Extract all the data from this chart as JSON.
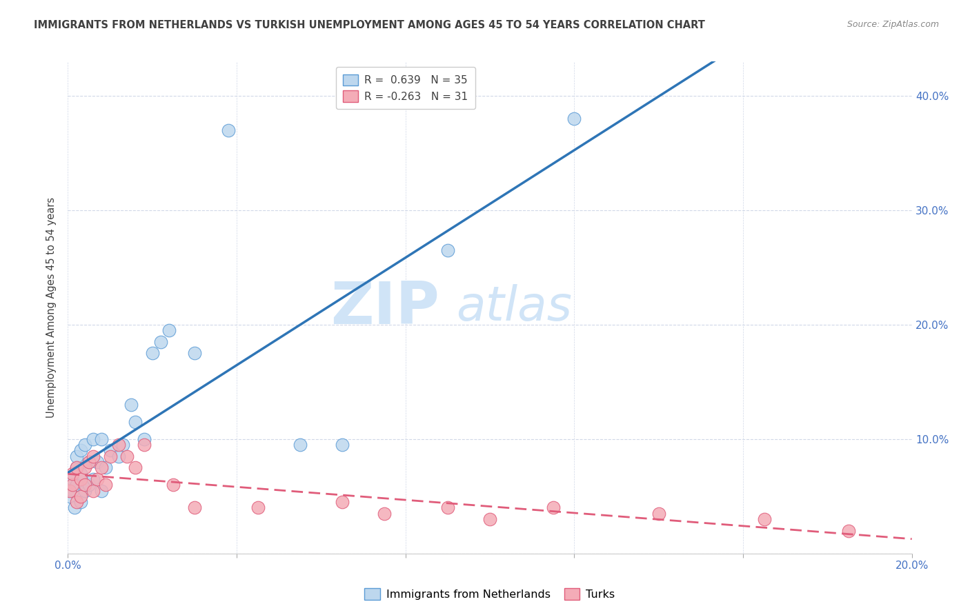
{
  "title": "IMMIGRANTS FROM NETHERLANDS VS TURKISH UNEMPLOYMENT AMONG AGES 45 TO 54 YEARS CORRELATION CHART",
  "source": "Source: ZipAtlas.com",
  "ylabel": "Unemployment Among Ages 45 to 54 years",
  "xlim": [
    0.0,
    0.2
  ],
  "ylim": [
    0.0,
    0.43
  ],
  "blue_R": "0.639",
  "blue_N": "35",
  "pink_R": "-0.263",
  "pink_N": "31",
  "blue_color": "#bdd7ee",
  "blue_edge_color": "#5b9bd5",
  "blue_line_color": "#2e75b6",
  "pink_color": "#f4acb7",
  "pink_edge_color": "#e05c7a",
  "pink_line_color": "#e05c7a",
  "blue_scatter_x": [
    0.0005,
    0.001,
    0.001,
    0.0015,
    0.002,
    0.002,
    0.002,
    0.003,
    0.003,
    0.003,
    0.004,
    0.004,
    0.005,
    0.005,
    0.006,
    0.006,
    0.007,
    0.008,
    0.008,
    0.009,
    0.01,
    0.012,
    0.013,
    0.015,
    0.016,
    0.018,
    0.02,
    0.022,
    0.024,
    0.03,
    0.038,
    0.055,
    0.065,
    0.09,
    0.12
  ],
  "blue_scatter_y": [
    0.05,
    0.055,
    0.065,
    0.04,
    0.06,
    0.075,
    0.085,
    0.045,
    0.07,
    0.09,
    0.055,
    0.095,
    0.06,
    0.08,
    0.1,
    0.065,
    0.08,
    0.055,
    0.1,
    0.075,
    0.09,
    0.085,
    0.095,
    0.13,
    0.115,
    0.1,
    0.175,
    0.185,
    0.195,
    0.175,
    0.37,
    0.095,
    0.095,
    0.265,
    0.38
  ],
  "pink_scatter_x": [
    0.0005,
    0.001,
    0.001,
    0.002,
    0.002,
    0.003,
    0.003,
    0.004,
    0.004,
    0.005,
    0.006,
    0.006,
    0.007,
    0.008,
    0.009,
    0.01,
    0.012,
    0.014,
    0.016,
    0.018,
    0.025,
    0.03,
    0.045,
    0.065,
    0.075,
    0.09,
    0.1,
    0.115,
    0.14,
    0.165,
    0.185
  ],
  "pink_scatter_y": [
    0.055,
    0.06,
    0.07,
    0.045,
    0.075,
    0.05,
    0.065,
    0.06,
    0.075,
    0.08,
    0.055,
    0.085,
    0.065,
    0.075,
    0.06,
    0.085,
    0.095,
    0.085,
    0.075,
    0.095,
    0.06,
    0.04,
    0.04,
    0.045,
    0.035,
    0.04,
    0.03,
    0.04,
    0.035,
    0.03,
    0.02
  ],
  "watermark_zip": "ZIP",
  "watermark_atlas": "atlas",
  "watermark_color": "#d0e4f7",
  "legend_entries": [
    "Immigrants from Netherlands",
    "Turks"
  ],
  "background_color": "#ffffff",
  "grid_color": "#d0d8e8",
  "label_color": "#4472c4",
  "title_color": "#404040"
}
